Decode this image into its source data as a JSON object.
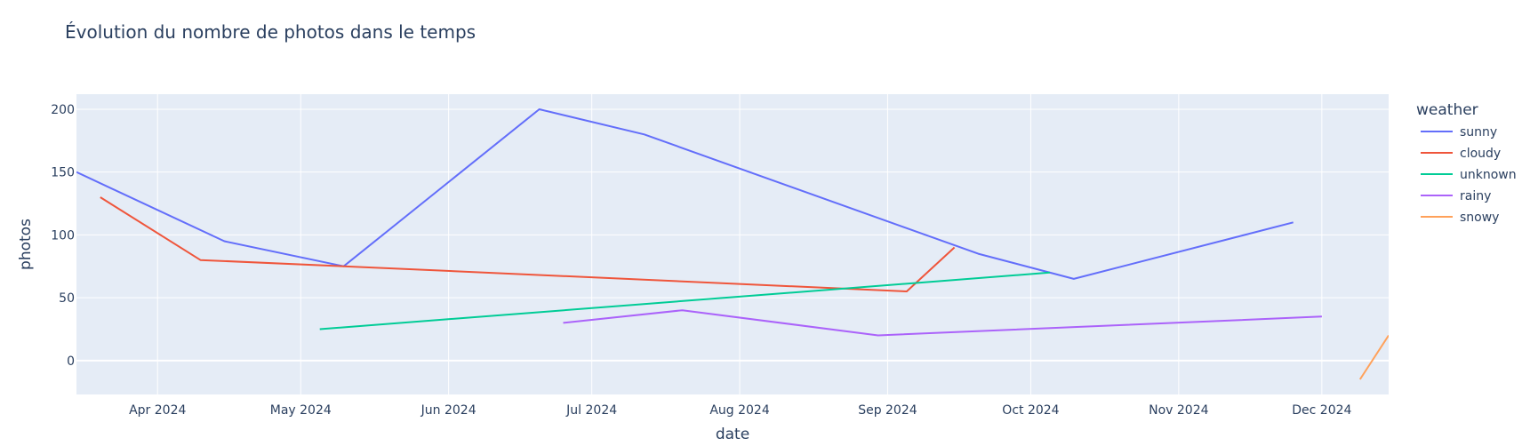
{
  "chart_data": {
    "type": "line",
    "title": "Évolution du nombre de photos dans le temps",
    "xlabel": "date",
    "ylabel": "photos",
    "xlim": [
      "2024-03-15",
      "2024-12-15"
    ],
    "ylim": [
      -27,
      212
    ],
    "x_ticks": [
      {
        "date": "2024-04-01",
        "label": "Apr 2024"
      },
      {
        "date": "2024-05-01",
        "label": "May 2024"
      },
      {
        "date": "2024-06-01",
        "label": "Jun 2024"
      },
      {
        "date": "2024-07-01",
        "label": "Jul 2024"
      },
      {
        "date": "2024-08-01",
        "label": "Aug 2024"
      },
      {
        "date": "2024-09-01",
        "label": "Sep 2024"
      },
      {
        "date": "2024-10-01",
        "label": "Oct 2024"
      },
      {
        "date": "2024-11-01",
        "label": "Nov 2024"
      },
      {
        "date": "2024-12-01",
        "label": "Dec 2024"
      }
    ],
    "y_ticks": [
      0,
      50,
      100,
      150,
      200
    ],
    "grid": true,
    "legend": {
      "title": "weather",
      "position": "right"
    },
    "series": [
      {
        "name": "sunny",
        "color": "#636efa",
        "x": [
          "2024-03-15",
          "2024-04-15",
          "2024-05-10",
          "2024-06-20",
          "2024-07-12",
          "2024-09-20",
          "2024-10-10",
          "2024-11-25"
        ],
        "y": [
          150,
          95,
          75,
          200,
          180,
          85,
          65,
          110
        ]
      },
      {
        "name": "cloudy",
        "color": "#ef553b",
        "x": [
          "2024-03-20",
          "2024-04-10",
          "2024-05-10",
          "2024-09-05",
          "2024-09-15"
        ],
        "y": [
          130,
          80,
          75,
          55,
          90
        ]
      },
      {
        "name": "unknown",
        "color": "#00cc96",
        "x": [
          "2024-05-05",
          "2024-10-05"
        ],
        "y": [
          25,
          70
        ]
      },
      {
        "name": "rainy",
        "color": "#ab63fa",
        "x": [
          "2024-06-25",
          "2024-07-20",
          "2024-08-30",
          "2024-12-01"
        ],
        "y": [
          30,
          40,
          20,
          35
        ]
      },
      {
        "name": "snowy",
        "color": "#ffa15a",
        "x": [
          "2024-12-09",
          "2024-12-15"
        ],
        "y": [
          -15,
          20
        ]
      }
    ]
  }
}
